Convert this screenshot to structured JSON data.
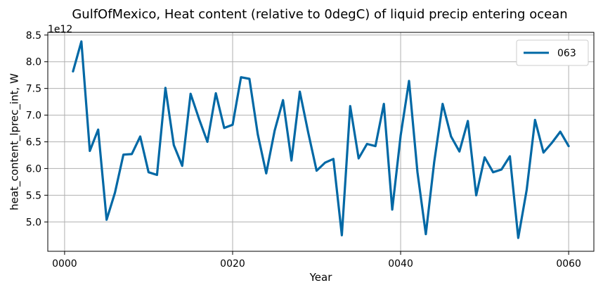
{
  "chart_data": {
    "type": "line",
    "title": "GulfOfMexico, Heat content (relative to 0degC) of liquid precip entering ocean",
    "xlabel": "Year",
    "ylabel": "heat_content_lprec_int, W",
    "y_offset_label": "1e12",
    "y_scale": 1000000000000.0,
    "xlim": [
      -2,
      63
    ],
    "ylim": [
      4.45,
      8.55
    ],
    "grid": true,
    "legend_position": "upper right",
    "x_ticks": [
      0,
      20,
      40,
      60
    ],
    "x_tick_labels": [
      "0000",
      "0020",
      "0040",
      "0060"
    ],
    "y_ticks": [
      5.0,
      5.5,
      6.0,
      6.5,
      7.0,
      7.5,
      8.0,
      8.5
    ],
    "y_tick_labels": [
      "5.0",
      "5.5",
      "6.0",
      "6.5",
      "7.0",
      "7.5",
      "8.0",
      "8.5"
    ],
    "series": [
      {
        "name": "063",
        "color": "#0068a5",
        "x": [
          1,
          2,
          3,
          4,
          5,
          6,
          7,
          8,
          9,
          10,
          11,
          12,
          13,
          14,
          15,
          16,
          17,
          18,
          19,
          20,
          21,
          22,
          23,
          24,
          25,
          26,
          27,
          28,
          29,
          30,
          31,
          32,
          33,
          34,
          35,
          36,
          37,
          38,
          39,
          40,
          41,
          42,
          43,
          44,
          45,
          46,
          47,
          48,
          49,
          50,
          51,
          52,
          53,
          54,
          55,
          56,
          57,
          58,
          59,
          60
        ],
        "values": [
          7.82,
          8.38,
          6.33,
          6.73,
          5.04,
          5.55,
          6.26,
          6.27,
          6.6,
          5.93,
          5.88,
          7.51,
          6.44,
          6.05,
          7.4,
          6.93,
          6.5,
          7.41,
          6.76,
          6.82,
          7.71,
          7.68,
          6.64,
          5.91,
          6.71,
          7.28,
          6.15,
          7.44,
          6.67,
          5.96,
          6.11,
          6.18,
          4.75,
          7.17,
          6.19,
          6.46,
          6.42,
          7.21,
          5.23,
          6.62,
          7.64,
          5.93,
          4.77,
          6.13,
          7.21,
          6.6,
          6.32,
          6.89,
          5.5,
          6.21,
          5.93,
          5.98,
          6.23,
          4.7,
          5.6,
          6.91,
          6.3,
          6.48,
          6.69,
          6.42
        ]
      }
    ]
  }
}
